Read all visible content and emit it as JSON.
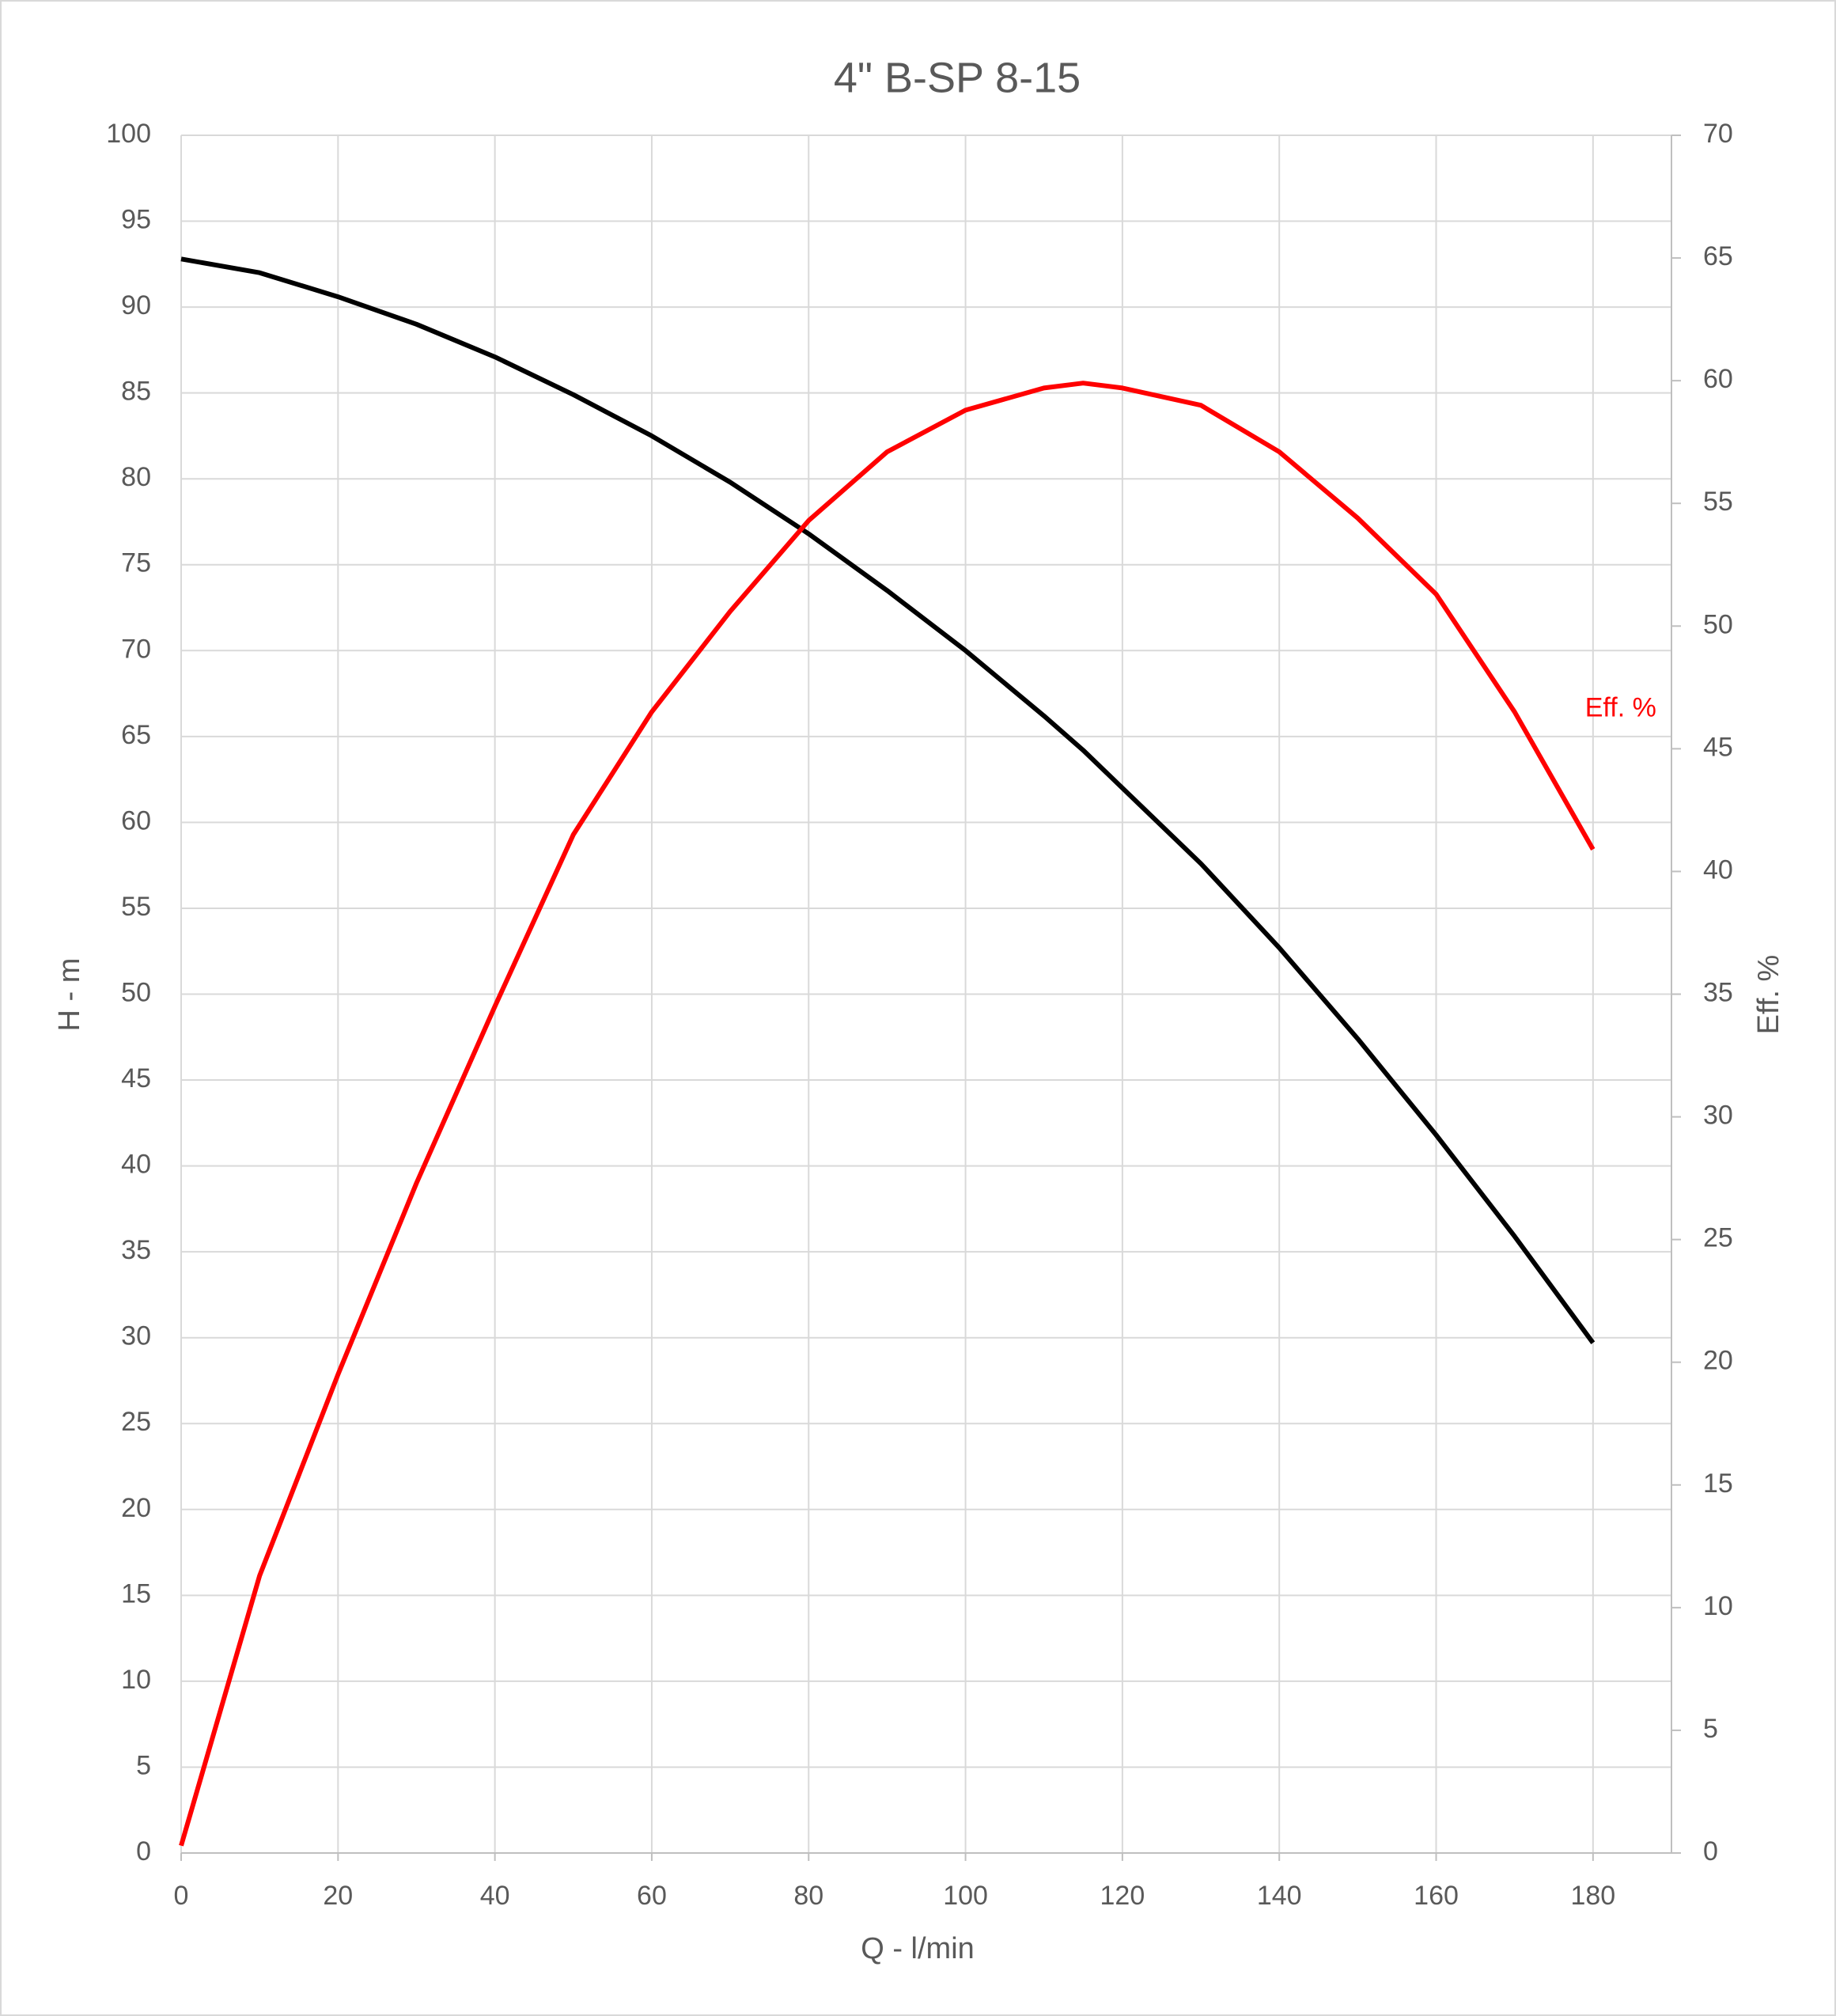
{
  "chart_data": {
    "type": "line",
    "title": "4\" B-SP 8-15",
    "xlabel": "Q - l/min",
    "ylabel": "H - m",
    "y2label": "Eff. %",
    "annotations": [
      {
        "text": "Eff. %",
        "x": 180,
        "y": 45,
        "axis": "y2",
        "color": "#ff0000"
      }
    ],
    "x": [
      0,
      10,
      20,
      30,
      40,
      50,
      60,
      70,
      80,
      90,
      100,
      110,
      115,
      120,
      130,
      140,
      150,
      160,
      170,
      180
    ],
    "series": [
      {
        "name": "H - m",
        "color": "#000000",
        "axis": "y",
        "values": [
          92.8,
          92.0,
          90.6,
          89.0,
          87.1,
          84.9,
          82.5,
          79.8,
          76.8,
          73.5,
          70.0,
          66.2,
          64.2,
          62.0,
          57.6,
          52.7,
          47.4,
          41.8,
          35.9,
          29.7
        ]
      },
      {
        "name": "Eff. %",
        "color": "#ff0000",
        "axis": "y2",
        "values": [
          0.3,
          11.3,
          19.5,
          27.3,
          34.5,
          41.5,
          46.5,
          50.6,
          54.3,
          57.1,
          58.8,
          59.7,
          59.9,
          59.7,
          59.0,
          57.1,
          54.4,
          51.3,
          46.5,
          40.9
        ]
      }
    ],
    "xlim": [
      0,
      190
    ],
    "xticks": [
      0,
      20,
      40,
      60,
      80,
      100,
      120,
      140,
      160,
      180
    ],
    "ylim": [
      0,
      100
    ],
    "yticks": [
      0,
      5,
      10,
      15,
      20,
      25,
      30,
      35,
      40,
      45,
      50,
      55,
      60,
      65,
      70,
      75,
      80,
      85,
      90,
      95,
      100
    ],
    "y2lim": [
      0,
      70
    ],
    "y2ticks": [
      0,
      5,
      10,
      15,
      20,
      25,
      30,
      35,
      40,
      45,
      50,
      55,
      60,
      65,
      70
    ],
    "grid": true
  }
}
